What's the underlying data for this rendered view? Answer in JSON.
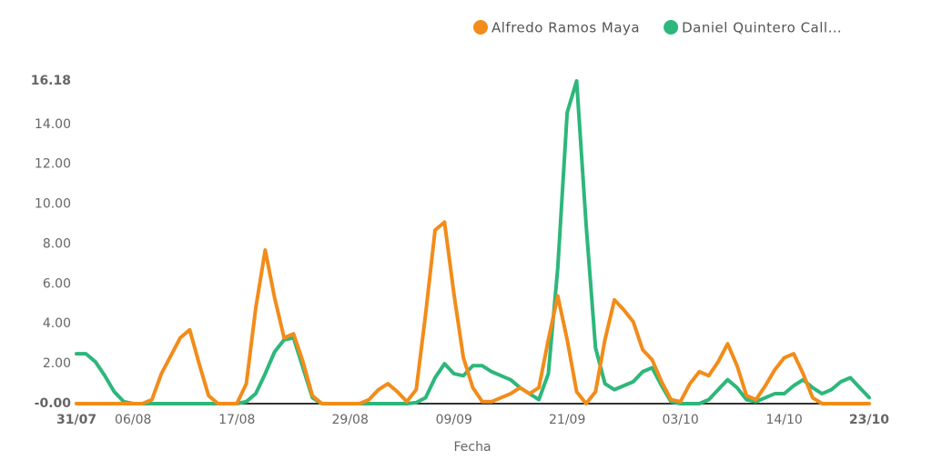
{
  "chart_data": {
    "type": "line",
    "x_label": "Fecha",
    "categories": [
      "31/07",
      null,
      null,
      null,
      null,
      null,
      "06/08",
      null,
      null,
      null,
      null,
      null,
      null,
      null,
      null,
      null,
      null,
      "17/08",
      null,
      null,
      null,
      null,
      null,
      null,
      null,
      null,
      null,
      null,
      null,
      "29/08",
      null,
      null,
      null,
      null,
      null,
      null,
      null,
      null,
      null,
      null,
      "09/09",
      null,
      null,
      null,
      null,
      null,
      null,
      null,
      null,
      null,
      null,
      null,
      "21/09",
      null,
      null,
      null,
      null,
      null,
      null,
      null,
      null,
      null,
      null,
      null,
      "03/10",
      null,
      null,
      null,
      null,
      null,
      null,
      null,
      null,
      null,
      null,
      "14/10",
      null,
      null,
      null,
      null,
      null,
      null,
      null,
      null,
      "23/10"
    ],
    "series": [
      {
        "name": "Alfredo Ramos Maya",
        "color": "#f28c1a",
        "values": [
          0,
          0,
          0,
          0,
          0,
          0,
          0,
          0,
          0.2,
          1.5,
          2.4,
          3.3,
          3.7,
          2.0,
          0.4,
          0,
          0,
          0,
          1.0,
          4.8,
          7.7,
          5.3,
          3.3,
          3.5,
          2.1,
          0.4,
          0,
          0,
          0,
          0,
          0,
          0.2,
          0.7,
          1.0,
          0.6,
          0.1,
          0.7,
          4.5,
          8.7,
          9.1,
          5.5,
          2.3,
          0.8,
          0.1,
          0.1,
          0.3,
          0.5,
          0.8,
          0.5,
          0.8,
          3.2,
          5.4,
          3.2,
          0.6,
          0,
          0.6,
          3.2,
          5.2,
          4.7,
          4.1,
          2.7,
          2.2,
          1.1,
          0.2,
          0.1,
          1.0,
          1.6,
          1.4,
          2.1,
          3.0,
          1.9,
          0.4,
          0.2,
          0.9,
          1.7,
          2.3,
          2.5,
          1.5,
          0.3,
          0,
          0,
          0,
          0,
          0,
          0
        ]
      },
      {
        "name": "Daniel Quintero Call…",
        "color": "#2db77b",
        "values": [
          2.5,
          2.5,
          2.1,
          1.4,
          0.6,
          0.1,
          0,
          0,
          0,
          0,
          0,
          0,
          0,
          0,
          0,
          0,
          0,
          0,
          0.1,
          0.5,
          1.5,
          2.6,
          3.2,
          3.3,
          1.8,
          0.3,
          0,
          0,
          0,
          0,
          0,
          0,
          0,
          0,
          0,
          0,
          0.05,
          0.3,
          1.3,
          2.0,
          1.5,
          1.4,
          1.9,
          1.9,
          1.6,
          1.4,
          1.2,
          0.8,
          0.5,
          0.2,
          1.5,
          6.8,
          14.6,
          16.18,
          9.0,
          2.8,
          1.0,
          0.7,
          0.9,
          1.1,
          1.6,
          1.8,
          0.9,
          0.1,
          0,
          0,
          0,
          0.2,
          0.7,
          1.2,
          0.8,
          0.2,
          0.1,
          0.3,
          0.5,
          0.5,
          0.9,
          1.2,
          0.8,
          0.5,
          0.7,
          1.1,
          1.3,
          0.8,
          0.3
        ]
      }
    ],
    "ylim": [
      0,
      16.18
    ],
    "yticks": [
      {
        "value": 0,
        "label": "-0.00"
      },
      {
        "value": 2,
        "label": "2.00"
      },
      {
        "value": 4,
        "label": "4.00"
      },
      {
        "value": 6,
        "label": "6.00"
      },
      {
        "value": 8,
        "label": "8.00"
      },
      {
        "value": 10,
        "label": "10.00"
      },
      {
        "value": 12,
        "label": "12.00"
      },
      {
        "value": 14,
        "label": "14.00"
      },
      16.18
    ],
    "grid": false,
    "legend": "top-right"
  }
}
